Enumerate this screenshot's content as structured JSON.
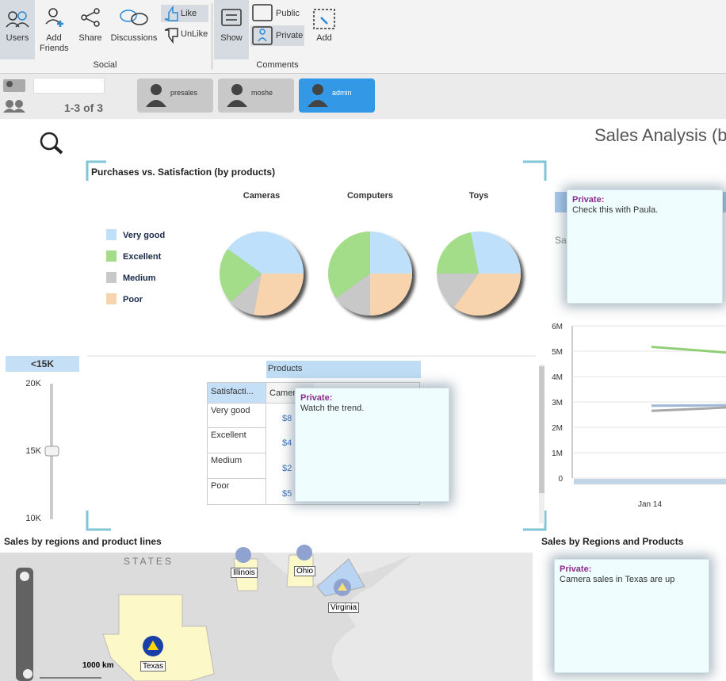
{
  "toolbar": {
    "groups": [
      {
        "label": "Social",
        "buttons": [
          "Users",
          "Add Friends",
          "Share",
          "Discussions",
          "Like",
          "UnLike"
        ]
      },
      {
        "label": "Comments",
        "buttons": [
          "Show",
          "Public",
          "Private",
          "Add"
        ]
      }
    ]
  },
  "users_bar": {
    "count": "1-3 of 3",
    "users": [
      "presales",
      "moshe",
      "admin"
    ]
  },
  "dashboard": {
    "title": "Sales Analysis (b",
    "partial_label": "Sa"
  },
  "chart_data": [
    {
      "type": "pie",
      "title": "Purchases vs. Satisfaction (by products)",
      "categories": [
        "Cameras",
        "Computers",
        "Toys"
      ],
      "series": [
        {
          "name": "Very good",
          "color": "#bfe0fb",
          "values": [
            40,
            25,
            28
          ]
        },
        {
          "name": "Excellent",
          "color": "#a3dd8a",
          "values": [
            22,
            35,
            22
          ]
        },
        {
          "name": "Medium",
          "color": "#c8c8c8",
          "values": [
            10,
            15,
            15
          ]
        },
        {
          "name": "Poor",
          "color": "#f7d4ae",
          "values": [
            28,
            25,
            35
          ]
        }
      ]
    },
    {
      "type": "line",
      "categories": [
        "Jan 14",
        null
      ],
      "ylim": [
        0,
        6000000
      ],
      "yticks": [
        0,
        {
          "value": 1000000,
          "label": "1M"
        },
        {
          "value": 2000000,
          "label": "2M"
        },
        {
          "value": 3000000,
          "label": "3M"
        },
        {
          "value": 4000000,
          "label": "4M"
        },
        {
          "value": 5000000,
          "label": "5M"
        },
        {
          "value": 6000000,
          "label": "6M"
        }
      ],
      "series": [
        {
          "color": "#8fce74",
          "values": [
            5170000,
            4950000
          ]
        },
        {
          "color": "#9fb8d6",
          "values": [
            2850000,
            2870000
          ]
        },
        {
          "color": "#a8a8a8",
          "values": [
            2650000,
            2780000
          ]
        }
      ]
    }
  ],
  "slider": {
    "label": "<15K",
    "ticks": [
      "20K",
      "15K",
      "10K"
    ]
  },
  "pivot": {
    "column_header": "Products",
    "row_header": "Satisfacti...",
    "column": "Camer",
    "rows": [
      [
        "Very good",
        "$8"
      ],
      [
        "Excellent",
        "$4"
      ],
      [
        "Medium",
        "$2"
      ],
      [
        "Poor",
        "$5"
      ]
    ]
  },
  "notes": [
    {
      "label": "Private:",
      "text": "Check this with Paula."
    },
    {
      "label": "Private:",
      "text": "Watch the trend."
    },
    {
      "label": "Private:",
      "text": "Camera sales in Texas are up"
    }
  ],
  "map": {
    "title": "Sales by regions and product lines",
    "labels": [
      "STATES",
      "Illinois",
      "Ohio",
      "Virginia",
      "Texas"
    ],
    "scale": "1000 km"
  },
  "regions_panel": {
    "title": "Sales by Regions and Products"
  }
}
